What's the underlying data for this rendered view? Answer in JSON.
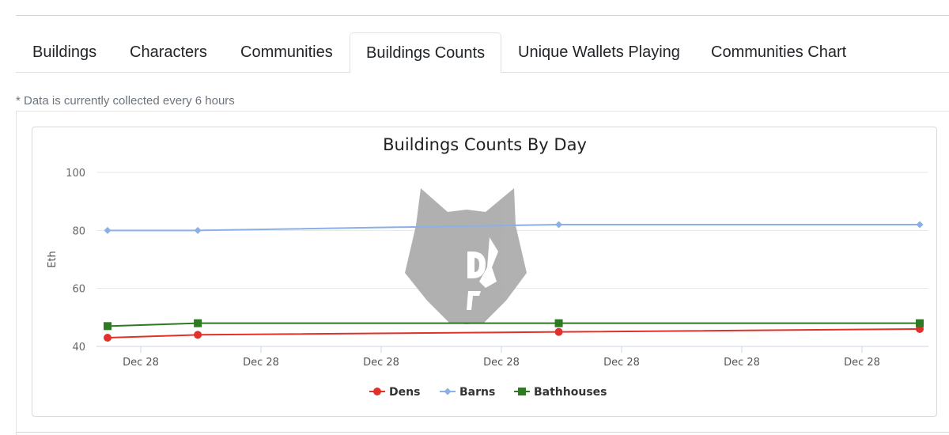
{
  "tabs": [
    {
      "label": "Buildings",
      "active": false
    },
    {
      "label": "Characters",
      "active": false
    },
    {
      "label": "Communities",
      "active": false
    },
    {
      "label": "Buildings Counts",
      "active": true
    },
    {
      "label": "Unique Wallets Playing",
      "active": false
    },
    {
      "label": "Communities Chart",
      "active": false
    }
  ],
  "note": "* Data is currently collected every 6 hours",
  "watermark_icon": "wolf-head-icon",
  "chart_data": {
    "type": "line",
    "title": "Buildings Counts By Day",
    "xlabel": "",
    "ylabel": "Eth",
    "ylim": [
      40,
      100
    ],
    "yticks": [
      40,
      60,
      80,
      100
    ],
    "xtick_labels": [
      "Dec 28",
      "Dec 28",
      "Dec 28",
      "Dec 28",
      "Dec 28",
      "Dec 28",
      "Dec 28"
    ],
    "grid": true,
    "legend_position": "bottom-center",
    "x": [
      0,
      1,
      5,
      9
    ],
    "series": [
      {
        "name": "Dens",
        "color": "#e0322a",
        "marker": "circle",
        "values": [
          43,
          44,
          45,
          46
        ]
      },
      {
        "name": "Barns",
        "color": "#8ab0e6",
        "marker": "diamond",
        "values": [
          80,
          80,
          82,
          82
        ]
      },
      {
        "name": "Bathhouses",
        "color": "#2e7a22",
        "marker": "square",
        "values": [
          47,
          48,
          48,
          48
        ]
      }
    ]
  }
}
